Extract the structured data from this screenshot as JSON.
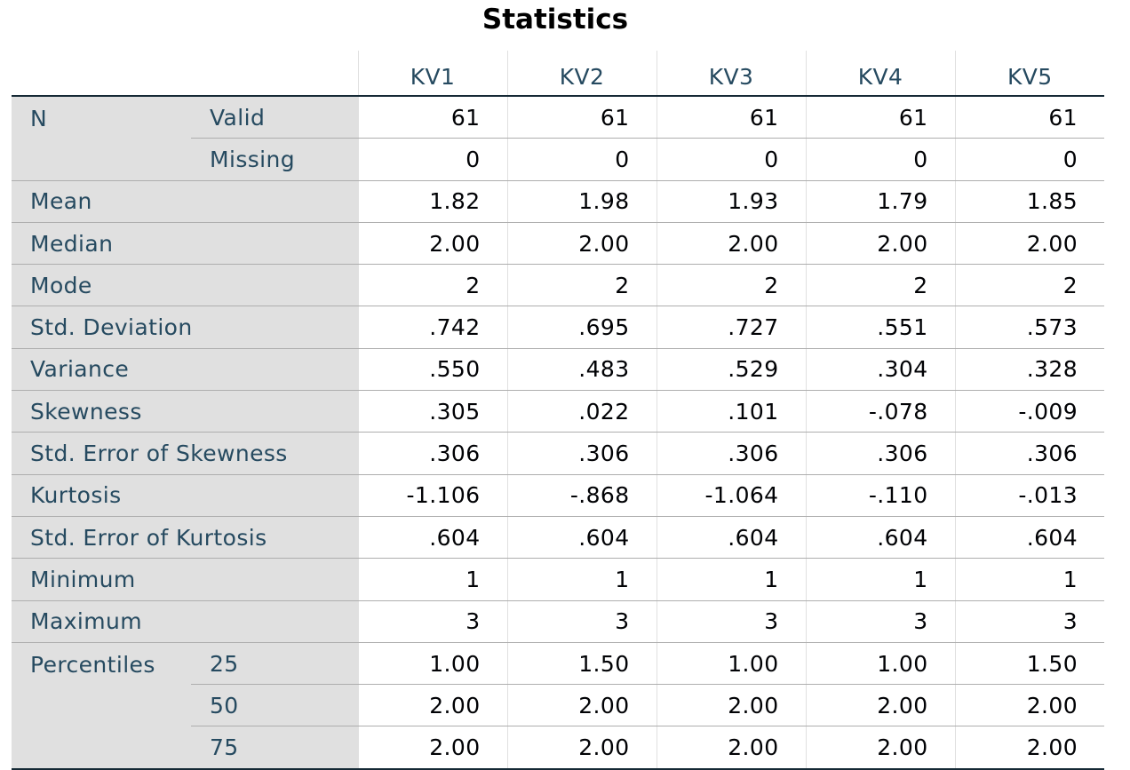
{
  "title": "Statistics",
  "columns": [
    "KV1",
    "KV2",
    "KV3",
    "KV4",
    "KV5"
  ],
  "groups": {
    "n": {
      "label": "N",
      "rows": [
        {
          "label": "Valid",
          "values": [
            "61",
            "61",
            "61",
            "61",
            "61"
          ]
        },
        {
          "label": "Missing",
          "values": [
            "0",
            "0",
            "0",
            "0",
            "0"
          ]
        }
      ]
    },
    "percentiles": {
      "label": "Percentiles",
      "rows": [
        {
          "label": "25",
          "values": [
            "1.00",
            "1.50",
            "1.00",
            "1.00",
            "1.50"
          ]
        },
        {
          "label": "50",
          "values": [
            "2.00",
            "2.00",
            "2.00",
            "2.00",
            "2.00"
          ]
        },
        {
          "label": "75",
          "values": [
            "2.00",
            "2.00",
            "2.00",
            "2.00",
            "2.00"
          ]
        }
      ]
    }
  },
  "rows": [
    {
      "label": "Mean",
      "values": [
        "1.82",
        "1.98",
        "1.93",
        "1.79",
        "1.85"
      ]
    },
    {
      "label": "Median",
      "values": [
        "2.00",
        "2.00",
        "2.00",
        "2.00",
        "2.00"
      ]
    },
    {
      "label": "Mode",
      "values": [
        "2",
        "2",
        "2",
        "2",
        "2"
      ]
    },
    {
      "label": "Std. Deviation",
      "values": [
        ".742",
        ".695",
        ".727",
        ".551",
        ".573"
      ]
    },
    {
      "label": "Variance",
      "values": [
        ".550",
        ".483",
        ".529",
        ".304",
        ".328"
      ]
    },
    {
      "label": "Skewness",
      "values": [
        ".305",
        ".022",
        ".101",
        "-.078",
        "-.009"
      ]
    },
    {
      "label": "Std. Error of Skewness",
      "values": [
        ".306",
        ".306",
        ".306",
        ".306",
        ".306"
      ]
    },
    {
      "label": "Kurtosis",
      "values": [
        "-1.106",
        "-.868",
        "-1.064",
        "-.110",
        "-.013"
      ]
    },
    {
      "label": "Std. Error of Kurtosis",
      "values": [
        ".604",
        ".604",
        ".604",
        ".604",
        ".604"
      ]
    },
    {
      "label": "Minimum",
      "values": [
        "1",
        "1",
        "1",
        "1",
        "1"
      ]
    },
    {
      "label": "Maximum",
      "values": [
        "3",
        "3",
        "3",
        "3",
        "3"
      ]
    }
  ]
}
